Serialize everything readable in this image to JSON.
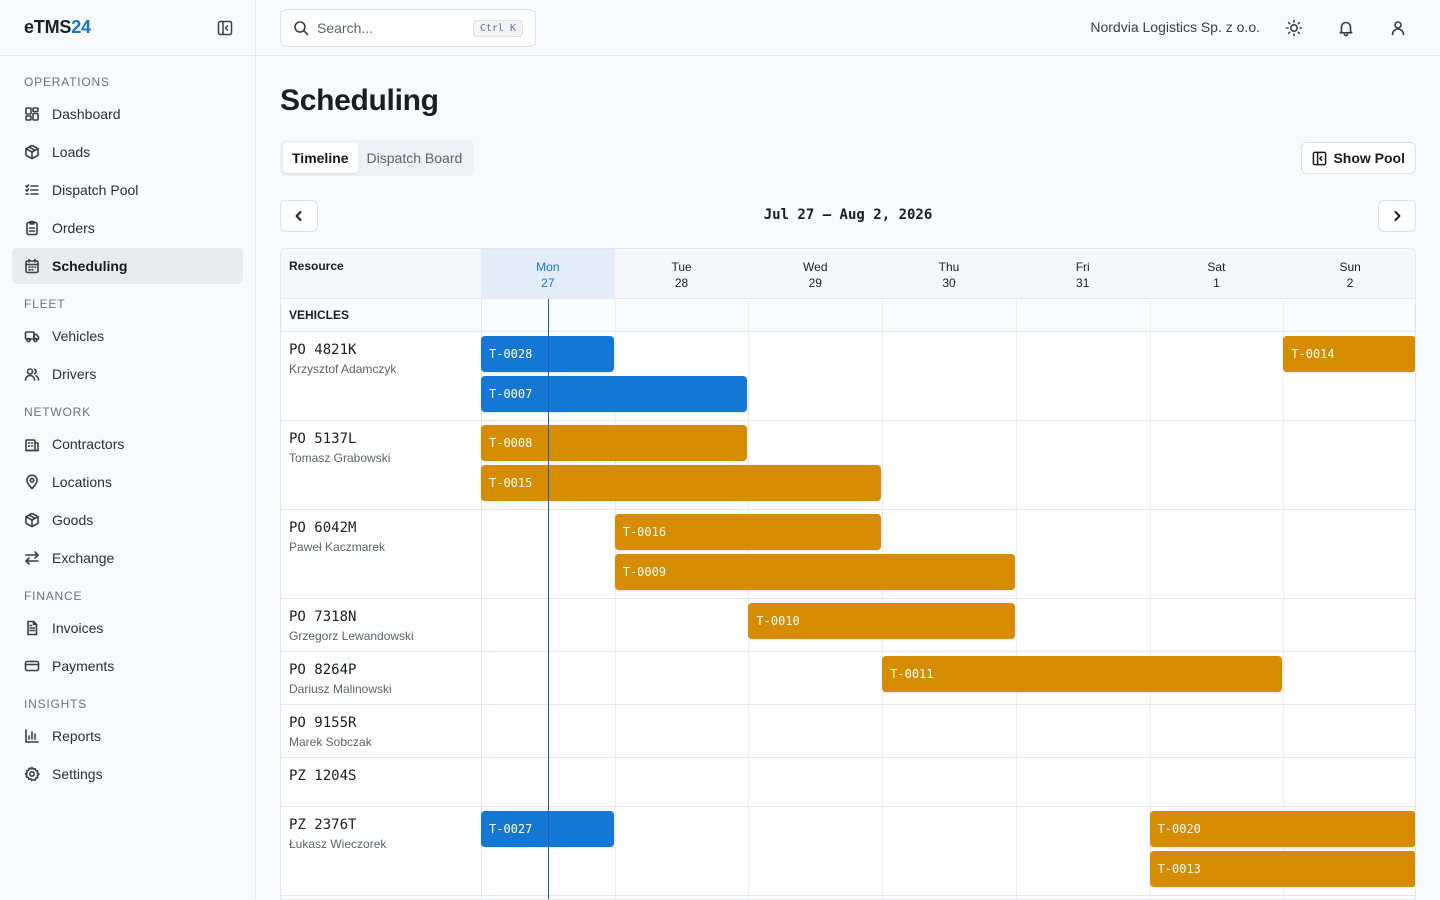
{
  "brand": {
    "prefix": "eTMS",
    "suffix": "24"
  },
  "sidebar": {
    "groups": [
      {
        "label": "OPERATIONS",
        "items": [
          {
            "label": "Dashboard",
            "icon": "dashboard-icon"
          },
          {
            "label": "Loads",
            "icon": "package-icon"
          },
          {
            "label": "Dispatch Pool",
            "icon": "list-icon"
          },
          {
            "label": "Orders",
            "icon": "clipboard-icon"
          },
          {
            "label": "Scheduling",
            "icon": "calendar-icon",
            "active": true
          }
        ]
      },
      {
        "label": "FLEET",
        "items": [
          {
            "label": "Vehicles",
            "icon": "truck-icon"
          },
          {
            "label": "Drivers",
            "icon": "users-icon"
          }
        ]
      },
      {
        "label": "NETWORK",
        "items": [
          {
            "label": "Contractors",
            "icon": "building-icon"
          },
          {
            "label": "Locations",
            "icon": "map-pin-icon"
          },
          {
            "label": "Goods",
            "icon": "box-icon"
          },
          {
            "label": "Exchange",
            "icon": "arrows-exchange-icon"
          }
        ]
      },
      {
        "label": "FINANCE",
        "items": [
          {
            "label": "Invoices",
            "icon": "document-icon"
          },
          {
            "label": "Payments",
            "icon": "credit-card-icon"
          }
        ]
      },
      {
        "label": "INSIGHTS",
        "items": [
          {
            "label": "Reports",
            "icon": "bar-chart-icon"
          },
          {
            "label": "Settings",
            "icon": "gear-icon"
          }
        ]
      }
    ]
  },
  "header": {
    "search_placeholder": "Search...",
    "search_shortcut": "Ctrl K",
    "org_name": "Nordvia Logistics Sp. z o.o."
  },
  "page": {
    "title": "Scheduling",
    "tabs": [
      "Timeline",
      "Dispatch Board"
    ],
    "active_tab": "Timeline",
    "show_pool_label": "Show Pool",
    "date_range": "Jul 27 – Aug 2, 2026"
  },
  "timeline": {
    "resource_header": "Resource",
    "section_label": "VEHICLES",
    "days": [
      {
        "dow": "Mon",
        "date": "27",
        "today": true
      },
      {
        "dow": "Tue",
        "date": "28"
      },
      {
        "dow": "Wed",
        "date": "29"
      },
      {
        "dow": "Thu",
        "date": "30"
      },
      {
        "dow": "Fri",
        "date": "31"
      },
      {
        "dow": "Sat",
        "date": "1"
      },
      {
        "dow": "Sun",
        "date": "2"
      }
    ],
    "colors": {
      "blue": "#1477d3",
      "amber": "#d68c00"
    },
    "rows": [
      {
        "plate": "PO 4821K",
        "driver": "Krzysztof Adamczyk",
        "bars": [
          {
            "id": "T-0028",
            "start": 0,
            "days": 1,
            "color": "blue",
            "lane": 0
          },
          {
            "id": "T-0014",
            "start": 6,
            "days": 1,
            "color": "amber",
            "lane": 0
          },
          {
            "id": "T-0007",
            "start": 0,
            "days": 2,
            "color": "blue",
            "lane": 1
          }
        ]
      },
      {
        "plate": "PO 5137L",
        "driver": "Tomasz Grabowski",
        "bars": [
          {
            "id": "T-0008",
            "start": 0,
            "days": 2,
            "color": "amber",
            "lane": 0
          },
          {
            "id": "T-0015",
            "start": 0,
            "days": 3,
            "color": "amber",
            "lane": 1
          }
        ]
      },
      {
        "plate": "PO 6042M",
        "driver": "Paweł Kaczmarek",
        "bars": [
          {
            "id": "T-0016",
            "start": 1,
            "days": 2,
            "color": "amber",
            "lane": 0
          },
          {
            "id": "T-0009",
            "start": 1,
            "days": 3,
            "color": "amber",
            "lane": 1
          }
        ]
      },
      {
        "plate": "PO 7318N",
        "driver": "Grzegorz Lewandowski",
        "bars": [
          {
            "id": "T-0010",
            "start": 2,
            "days": 2,
            "color": "amber",
            "lane": 0
          }
        ]
      },
      {
        "plate": "PO 8264P",
        "driver": "Dariusz Malinowski",
        "bars": [
          {
            "id": "T-0011",
            "start": 3,
            "days": 3,
            "color": "amber",
            "lane": 0
          }
        ]
      },
      {
        "plate": "PO 9155R",
        "driver": "Marek Sobczak",
        "bars": []
      },
      {
        "plate": "PZ 1204S",
        "driver": "",
        "bars": []
      },
      {
        "plate": "PZ 2376T",
        "driver": "Łukasz Wieczorek",
        "bars": [
          {
            "id": "T-0027",
            "start": 0,
            "days": 1,
            "color": "blue",
            "lane": 0
          },
          {
            "id": "T-0020",
            "start": 5,
            "days": 2,
            "color": "amber",
            "lane": 0
          },
          {
            "id": "T-0013",
            "start": 5,
            "days": 2,
            "color": "amber",
            "lane": 1
          }
        ]
      }
    ]
  }
}
